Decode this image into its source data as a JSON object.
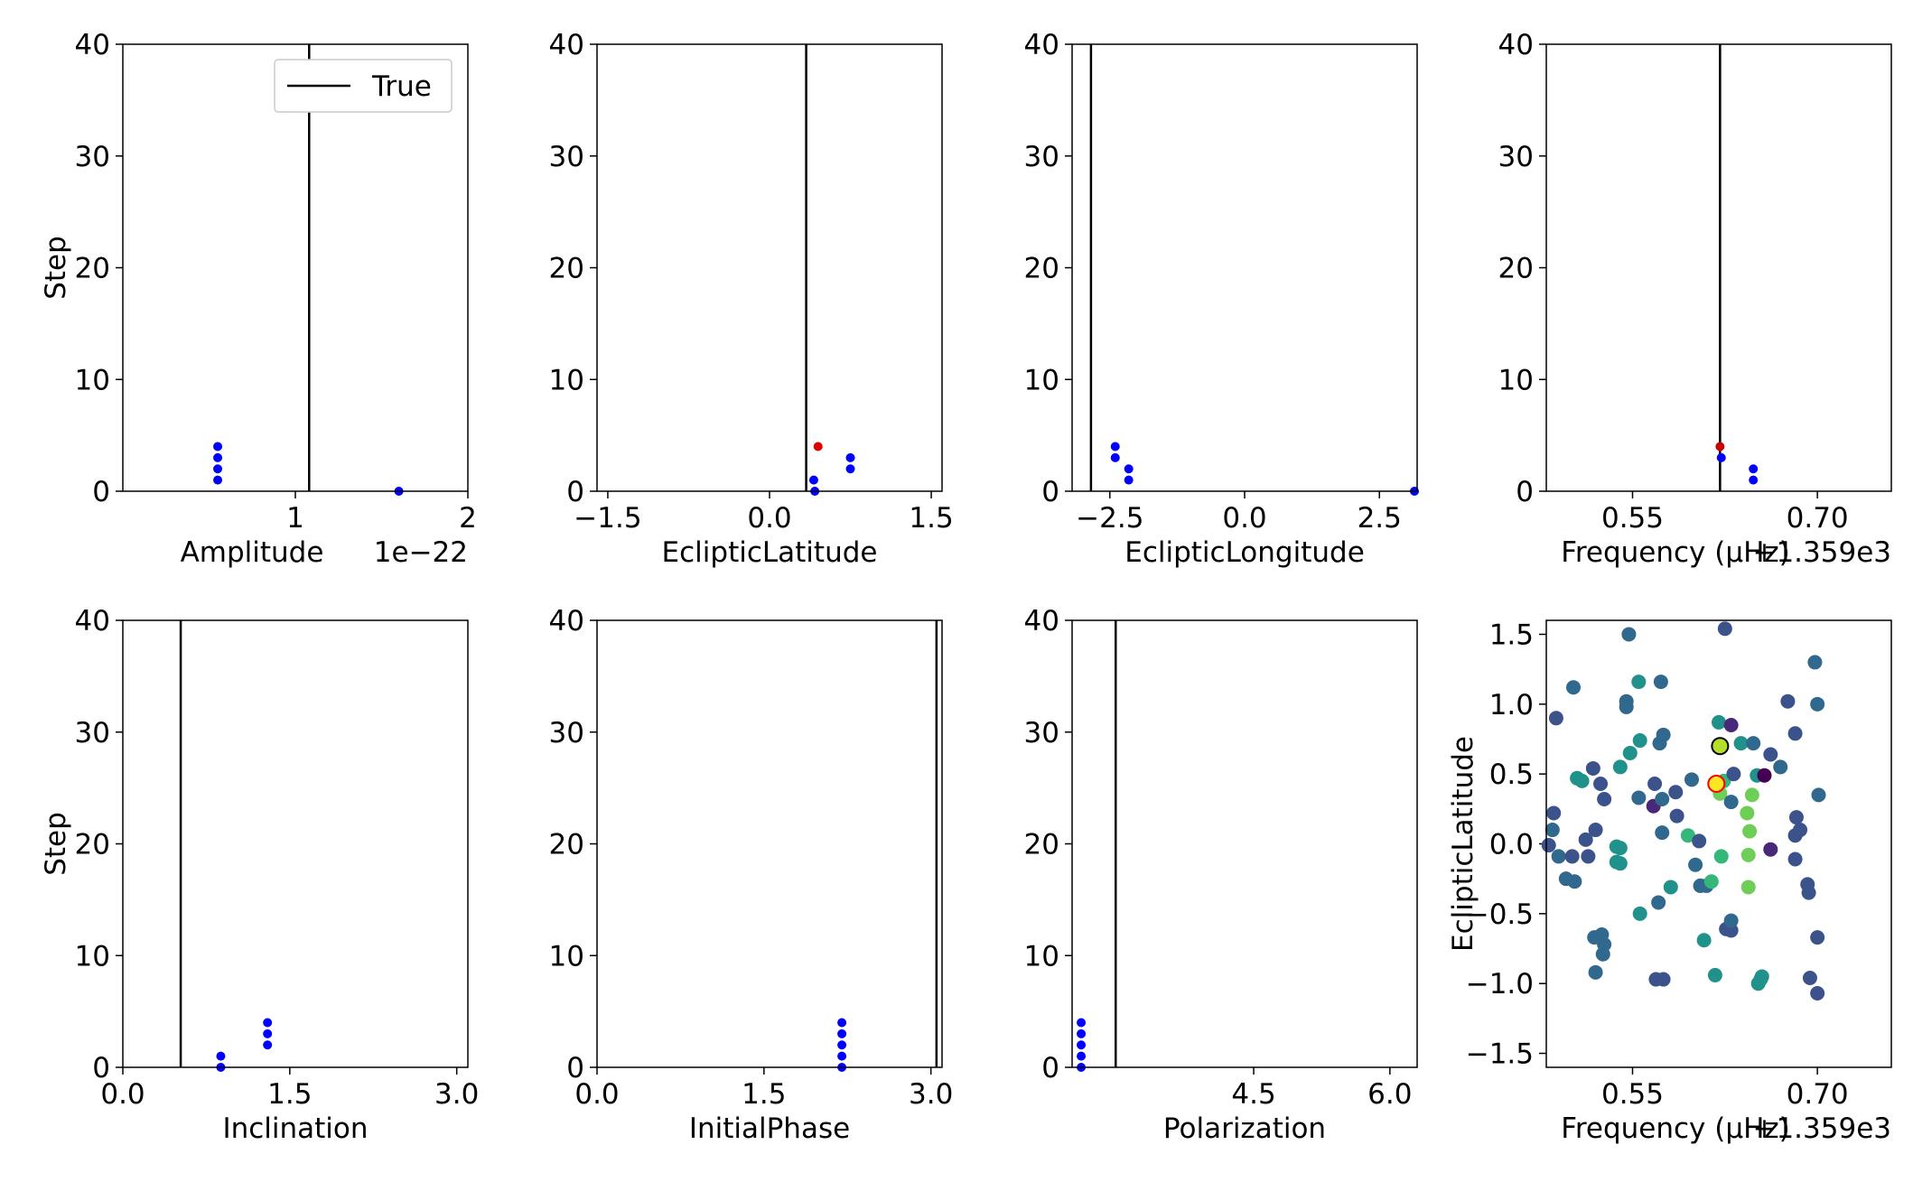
{
  "chart_data": [
    {
      "type": "scatter",
      "xlabel": "Amplitude",
      "ylabel": "Step",
      "offset_text": "1e−22",
      "xlim": [
        0.0,
        2.0
      ],
      "ylim": [
        0,
        40
      ],
      "xticks": [
        {
          "v": 1.0,
          "label": "1"
        },
        {
          "v": 2.0,
          "label": "2"
        }
      ],
      "yticks": [
        0,
        10,
        20,
        30,
        40
      ],
      "true_value": 1.08,
      "legend": {
        "label": "True",
        "position": "top-right"
      },
      "points": [
        {
          "x": 0.55,
          "y": 4,
          "color": "#0000ff"
        },
        {
          "x": 0.55,
          "y": 3,
          "color": "#0000ff"
        },
        {
          "x": 0.55,
          "y": 2,
          "color": "#0000ff"
        },
        {
          "x": 0.55,
          "y": 1,
          "color": "#0000ff"
        },
        {
          "x": 1.6,
          "y": 0,
          "color": "#0000ff"
        }
      ]
    },
    {
      "type": "scatter",
      "xlabel": "EclipticLatitude",
      "ylabel": "",
      "offset_text": "",
      "xlim": [
        -1.6,
        1.6
      ],
      "ylim": [
        0,
        40
      ],
      "xticks": [
        {
          "v": -1.5,
          "label": "−1.5"
        },
        {
          "v": 0.0,
          "label": "0.0"
        },
        {
          "v": 1.5,
          "label": "1.5"
        }
      ],
      "yticks": [
        0,
        10,
        20,
        30,
        40
      ],
      "true_value": 0.34,
      "points": [
        {
          "x": 0.45,
          "y": 4,
          "color": "#dd0000"
        },
        {
          "x": 0.75,
          "y": 3,
          "color": "#0000ff"
        },
        {
          "x": 0.75,
          "y": 2,
          "color": "#0000ff"
        },
        {
          "x": 0.41,
          "y": 1,
          "color": "#0000ff"
        },
        {
          "x": 0.42,
          "y": 0,
          "color": "#0000ff"
        }
      ]
    },
    {
      "type": "scatter",
      "xlabel": "EclipticLongitude",
      "ylabel": "",
      "offset_text": "",
      "xlim": [
        -3.2,
        3.2
      ],
      "ylim": [
        0,
        40
      ],
      "xticks": [
        {
          "v": -2.5,
          "label": "−2.5"
        },
        {
          "v": 0.0,
          "label": "0.0"
        },
        {
          "v": 2.5,
          "label": "2.5"
        }
      ],
      "yticks": [
        0,
        10,
        20,
        30,
        40
      ],
      "true_value": -2.85,
      "points": [
        {
          "x": -2.4,
          "y": 4,
          "color": "#0000ff"
        },
        {
          "x": -2.4,
          "y": 3,
          "color": "#0000ff"
        },
        {
          "x": -2.15,
          "y": 2,
          "color": "#0000ff"
        },
        {
          "x": -2.15,
          "y": 1,
          "color": "#0000ff"
        },
        {
          "x": 3.15,
          "y": 0,
          "color": "#0000ff"
        }
      ]
    },
    {
      "type": "scatter",
      "xlabel": "Frequency (μHz)",
      "ylabel": "",
      "offset_text": "+1.359e3",
      "xlim": [
        0.48,
        0.76
      ],
      "ylim": [
        0,
        40
      ],
      "xticks": [
        {
          "v": 0.55,
          "label": "0.55"
        },
        {
          "v": 0.7,
          "label": "0.70"
        }
      ],
      "yticks": [
        0,
        10,
        20,
        30,
        40
      ],
      "true_value": 0.621,
      "points": [
        {
          "x": 0.621,
          "y": 4,
          "color": "#cc0000"
        },
        {
          "x": 0.622,
          "y": 3,
          "color": "#0000ff"
        },
        {
          "x": 0.648,
          "y": 2,
          "color": "#0000ff"
        },
        {
          "x": 0.648,
          "y": 1,
          "color": "#0000ff"
        }
      ]
    },
    {
      "type": "scatter",
      "xlabel": "Inclination",
      "ylabel": "Step",
      "offset_text": "",
      "xlim": [
        0.0,
        3.1
      ],
      "ylim": [
        0,
        40
      ],
      "xticks": [
        {
          "v": 0.0,
          "label": "0.0"
        },
        {
          "v": 1.5,
          "label": "1.5"
        },
        {
          "v": 3.0,
          "label": "3.0"
        }
      ],
      "yticks": [
        0,
        10,
        20,
        30,
        40
      ],
      "true_value": 0.52,
      "points": [
        {
          "x": 1.3,
          "y": 4,
          "color": "#0000ff"
        },
        {
          "x": 1.3,
          "y": 3,
          "color": "#0000ff"
        },
        {
          "x": 1.3,
          "y": 2,
          "color": "#0000ff"
        },
        {
          "x": 0.88,
          "y": 1,
          "color": "#0000ff"
        },
        {
          "x": 0.88,
          "y": 0,
          "color": "#0000ff"
        }
      ]
    },
    {
      "type": "scatter",
      "xlabel": "InitialPhase",
      "ylabel": "",
      "offset_text": "",
      "xlim": [
        0.0,
        3.1
      ],
      "ylim": [
        0,
        40
      ],
      "xticks": [
        {
          "v": 0.0,
          "label": "0.0"
        },
        {
          "v": 1.5,
          "label": "1.5"
        },
        {
          "v": 3.0,
          "label": "3.0"
        }
      ],
      "yticks": [
        0,
        10,
        20,
        30,
        40
      ],
      "true_value": 3.05,
      "points": [
        {
          "x": 2.2,
          "y": 4,
          "color": "#0000ff"
        },
        {
          "x": 2.2,
          "y": 3,
          "color": "#0000ff"
        },
        {
          "x": 2.2,
          "y": 2,
          "color": "#0000ff"
        },
        {
          "x": 2.2,
          "y": 1,
          "color": "#0000ff"
        },
        {
          "x": 2.2,
          "y": 0,
          "color": "#0000ff"
        }
      ]
    },
    {
      "type": "scatter",
      "xlabel": "Polarization",
      "ylabel": "",
      "offset_text": "",
      "xlim": [
        2.5,
        6.3
      ],
      "ylim": [
        0,
        40
      ],
      "xticks": [
        {
          "v": 4.5,
          "label": "4.5"
        },
        {
          "v": 6.0,
          "label": "6.0"
        }
      ],
      "yticks": [
        0,
        10,
        20,
        30,
        40
      ],
      "true_value": 2.98,
      "points": [
        {
          "x": 2.6,
          "y": 4,
          "color": "#0000ff"
        },
        {
          "x": 2.6,
          "y": 3,
          "color": "#0000ff"
        },
        {
          "x": 2.6,
          "y": 2,
          "color": "#0000ff"
        },
        {
          "x": 2.6,
          "y": 1,
          "color": "#0000ff"
        },
        {
          "x": 2.6,
          "y": 0,
          "color": "#0000ff"
        }
      ]
    },
    {
      "type": "scatter",
      "xlabel": "Frequency (μHz)",
      "ylabel": "EclipticLatitude",
      "offset_text": "+1.359e3",
      "xlim": [
        0.48,
        0.76
      ],
      "ylim": [
        -1.6,
        1.6
      ],
      "xticks": [
        {
          "v": 0.55,
          "label": "0.55"
        },
        {
          "v": 0.7,
          "label": "0.70"
        }
      ],
      "yticks": [
        {
          "v": -1.5,
          "label": "−1.5"
        },
        {
          "v": -1.0,
          "label": "−1.0"
        },
        {
          "v": -0.5,
          "label": "−0.5"
        },
        {
          "v": 0.0,
          "label": "0.0"
        },
        {
          "v": 0.5,
          "label": "0.5"
        },
        {
          "v": 1.0,
          "label": "1.0"
        },
        {
          "v": 1.5,
          "label": "1.5"
        }
      ],
      "highlight_true": {
        "x": 0.621,
        "y": 0.7,
        "color": "#b5de2b"
      },
      "highlight_best": {
        "x": 0.618,
        "y": 0.43,
        "color": "#fde725"
      },
      "points": [
        [
          0.488,
          0.9,
          "#3b528b"
        ],
        [
          0.486,
          0.22,
          "#3b528b"
        ],
        [
          0.485,
          0.1,
          "#31688e"
        ],
        [
          0.482,
          -0.01,
          "#3b528b"
        ],
        [
          0.49,
          -0.09,
          "#31688e"
        ],
        [
          0.502,
          1.12,
          "#31688e"
        ],
        [
          0.496,
          -0.25,
          "#31688e"
        ],
        [
          0.503,
          -0.27,
          "#31688e"
        ],
        [
          0.501,
          -0.09,
          "#3b528b"
        ],
        [
          0.505,
          0.47,
          "#21918c"
        ],
        [
          0.509,
          0.45,
          "#21918c"
        ],
        [
          0.512,
          0.03,
          "#3b528b"
        ],
        [
          0.514,
          -0.09,
          "#3b528b"
        ],
        [
          0.518,
          0.54,
          "#3b528b"
        ],
        [
          0.52,
          0.1,
          "#3b528b"
        ],
        [
          0.519,
          -0.67,
          "#31688e"
        ],
        [
          0.52,
          -0.92,
          "#31688e"
        ],
        [
          0.525,
          -0.65,
          "#31688e"
        ],
        [
          0.526,
          -0.79,
          "#31688e"
        ],
        [
          0.527,
          -0.72,
          "#31688e"
        ],
        [
          0.524,
          0.43,
          "#3b528b"
        ],
        [
          0.527,
          0.32,
          "#3b528b"
        ],
        [
          0.537,
          -0.02,
          "#21918c"
        ],
        [
          0.54,
          -0.03,
          "#21918c"
        ],
        [
          0.537,
          -0.13,
          "#21918c"
        ],
        [
          0.54,
          -0.14,
          "#21918c"
        ],
        [
          0.54,
          0.55,
          "#21918c"
        ],
        [
          0.545,
          1.02,
          "#31688e"
        ],
        [
          0.545,
          0.98,
          "#31688e"
        ],
        [
          0.547,
          1.5,
          "#31688e"
        ],
        [
          0.548,
          0.65,
          "#21918c"
        ],
        [
          0.556,
          0.74,
          "#21918c"
        ],
        [
          0.555,
          1.16,
          "#21918c"
        ],
        [
          0.555,
          0.33,
          "#31688e"
        ],
        [
          0.556,
          -0.5,
          "#21918c"
        ],
        [
          0.568,
          0.43,
          "#3b528b"
        ],
        [
          0.567,
          0.27,
          "#482878"
        ],
        [
          0.569,
          -0.97,
          "#3b528b"
        ],
        [
          0.575,
          -0.97,
          "#3b528b"
        ],
        [
          0.573,
          1.16,
          "#31688e"
        ],
        [
          0.575,
          0.78,
          "#31688e"
        ],
        [
          0.572,
          0.72,
          "#31688e"
        ],
        [
          0.574,
          0.32,
          "#31688e"
        ],
        [
          0.574,
          0.08,
          "#31688e"
        ],
        [
          0.571,
          -0.42,
          "#31688e"
        ],
        [
          0.581,
          -0.31,
          "#21918c"
        ],
        [
          0.585,
          0.37,
          "#3b528b"
        ],
        [
          0.586,
          0.2,
          "#3b528b"
        ],
        [
          0.595,
          0.06,
          "#35b779"
        ],
        [
          0.604,
          0.02,
          "#3b528b"
        ],
        [
          0.601,
          -0.15,
          "#31688e"
        ],
        [
          0.605,
          -0.3,
          "#31688e"
        ],
        [
          0.598,
          0.46,
          "#31688e"
        ],
        [
          0.61,
          -0.3,
          "#31688e"
        ],
        [
          0.608,
          -0.69,
          "#21918c"
        ],
        [
          0.614,
          -0.27,
          "#35b779"
        ],
        [
          0.617,
          -0.94,
          "#21918c"
        ],
        [
          0.62,
          0.87,
          "#21918c"
        ],
        [
          0.621,
          0.36,
          "#6ece58"
        ],
        [
          0.622,
          -0.09,
          "#35b779"
        ],
        [
          0.624,
          0.45,
          "#35b779"
        ],
        [
          0.626,
          -0.61,
          "#3b528b"
        ],
        [
          0.63,
          0.3,
          "#31688e"
        ],
        [
          0.63,
          0.85,
          "#482878"
        ],
        [
          0.63,
          -0.62,
          "#3b528b"
        ],
        [
          0.63,
          -0.55,
          "#31688e"
        ],
        [
          0.632,
          0.5,
          "#3b528b"
        ],
        [
          0.625,
          1.54,
          "#3b528b"
        ],
        [
          0.638,
          0.72,
          "#21918c"
        ],
        [
          0.643,
          0.22,
          "#6ece58"
        ],
        [
          0.645,
          0.09,
          "#6ece58"
        ],
        [
          0.644,
          -0.08,
          "#6ece58"
        ],
        [
          0.644,
          -0.31,
          "#6ece58"
        ],
        [
          0.647,
          0.35,
          "#6ece58"
        ],
        [
          0.651,
          0.49,
          "#21918c"
        ],
        [
          0.648,
          0.72,
          "#31688e"
        ],
        [
          0.657,
          0.49,
          "#440154"
        ],
        [
          0.652,
          -1.0,
          "#21918c"
        ],
        [
          0.655,
          -0.95,
          "#21918c"
        ],
        [
          0.654,
          -0.97,
          "#21918c"
        ],
        [
          0.662,
          0.64,
          "#3b528b"
        ],
        [
          0.67,
          0.55,
          "#31688e"
        ],
        [
          0.662,
          -0.04,
          "#482878"
        ],
        [
          0.676,
          1.02,
          "#3b528b"
        ],
        [
          0.682,
          0.79,
          "#3b528b"
        ],
        [
          0.683,
          0.19,
          "#3b528b"
        ],
        [
          0.682,
          0.06,
          "#3b528b"
        ],
        [
          0.686,
          0.1,
          "#3b528b"
        ],
        [
          0.682,
          -0.11,
          "#3b528b"
        ],
        [
          0.692,
          -0.29,
          "#3b528b"
        ],
        [
          0.693,
          -0.35,
          "#3b528b"
        ],
        [
          0.694,
          -0.96,
          "#3b528b"
        ],
        [
          0.7,
          -1.07,
          "#3b528b"
        ],
        [
          0.698,
          1.3,
          "#31688e"
        ],
        [
          0.7,
          1.0,
          "#31688e"
        ],
        [
          0.701,
          0.35,
          "#31688e"
        ],
        [
          0.7,
          -0.67,
          "#3b528b"
        ]
      ]
    }
  ]
}
